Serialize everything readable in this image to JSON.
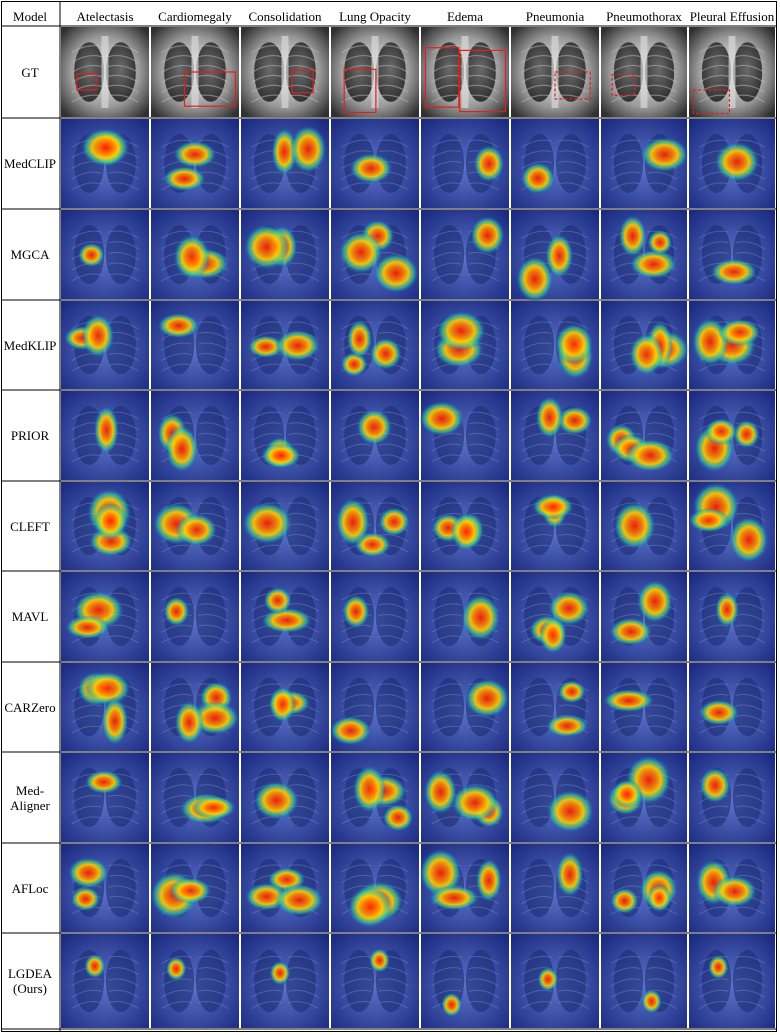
{
  "header": {
    "model": "Model",
    "columns": [
      "Atelectasis",
      "Cardiomegaly",
      "Consolidation",
      "Lung Opacity",
      "Edema",
      "Pneumonia",
      "Pneumothorax",
      "Pleural Effusion"
    ]
  },
  "rows": [
    {
      "label": "GT"
    },
    {
      "label": "MedCLIP"
    },
    {
      "label": "MGCA"
    },
    {
      "label": "MedKLIP"
    },
    {
      "label": "PRIOR"
    },
    {
      "label": "CLEFT"
    },
    {
      "label": "MAVL"
    },
    {
      "label": "CARZero"
    },
    {
      "label": "Med-\nAligner"
    },
    {
      "label": "AFLoc"
    },
    {
      "label": "LGDEA\n(Ours)"
    }
  ],
  "colors": {
    "gt_box": "#e0201c",
    "heat_hot": "#ff1a00",
    "heat_warm": "#ffd000",
    "heat_mid": "#30d0a0",
    "heat_cool": "#2040c0"
  }
}
